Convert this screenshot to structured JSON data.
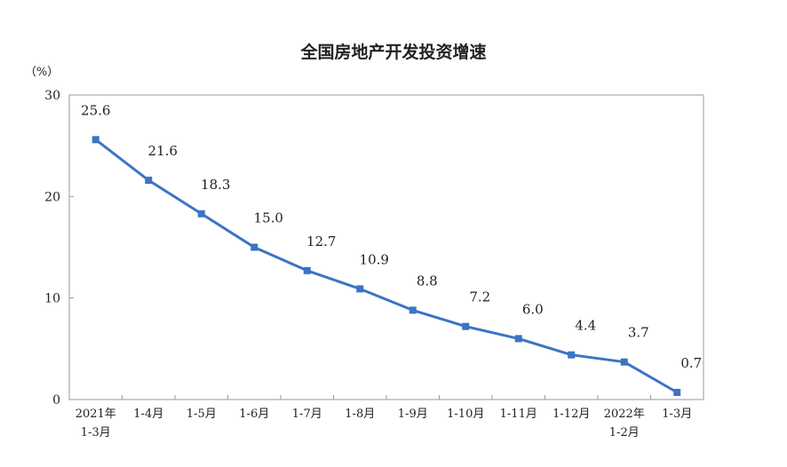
{
  "chart_data": {
    "type": "line",
    "title": "全国房地产开发投资增速",
    "ylabel": "（%）",
    "ylim": [
      0,
      30
    ],
    "yticks": [
      "0",
      "10",
      "20",
      "30"
    ],
    "categories": [
      [
        "2021年",
        "1-3月"
      ],
      [
        "1-4月"
      ],
      [
        "1-5月"
      ],
      [
        "1-6月"
      ],
      [
        "1-7月"
      ],
      [
        "1-8月"
      ],
      [
        "1-9月"
      ],
      [
        "1-10月"
      ],
      [
        "1-11月"
      ],
      [
        "1-12月"
      ],
      [
        "2022年",
        "1-2月"
      ],
      [
        "1-3月"
      ]
    ],
    "values": [
      25.6,
      21.6,
      18.3,
      15.0,
      12.7,
      10.9,
      8.8,
      7.2,
      6.0,
      4.4,
      3.7,
      0.7
    ],
    "value_labels": [
      "25.6",
      "21.6",
      "18.3",
      "15.0",
      "12.7",
      "10.9",
      "8.8",
      "7.2",
      "6.0",
      "4.4",
      "3.7",
      "0.7"
    ],
    "line_color": "#3a74c4",
    "grid": false,
    "legend": "none"
  }
}
